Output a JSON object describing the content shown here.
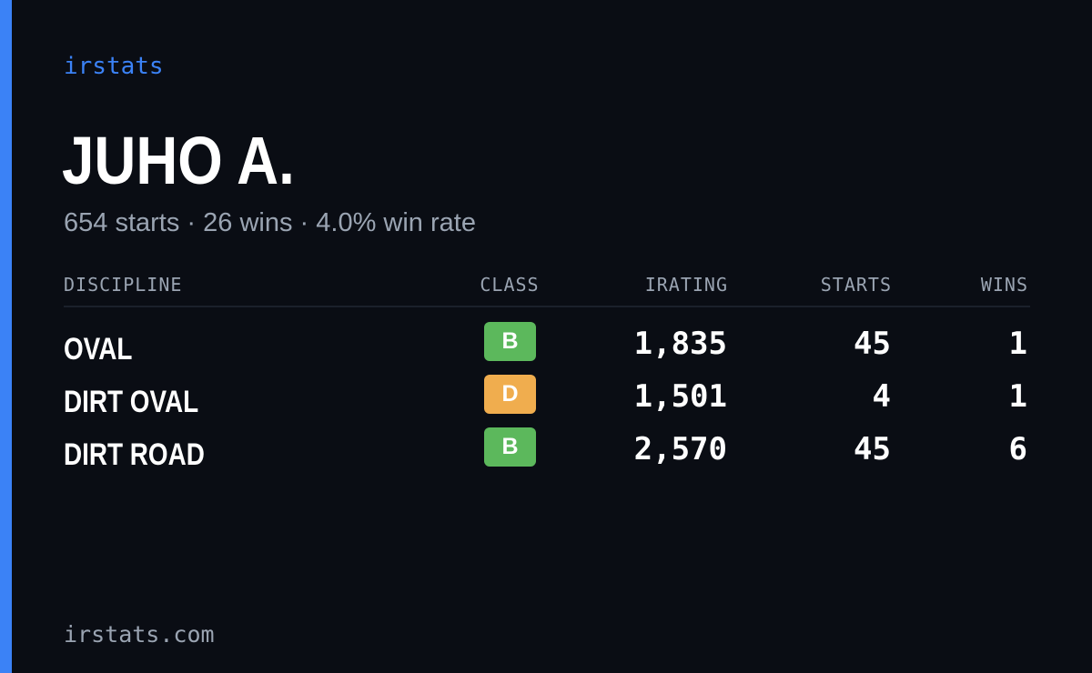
{
  "colors": {
    "accent": "#3b82f6",
    "background": "#0a0d14",
    "muted_text": "#9aa4b2",
    "class_b": "#5cb85c",
    "class_d": "#f0ad4e"
  },
  "brand": {
    "name": "irstats"
  },
  "driver": {
    "name": "JUHO A.",
    "starts_text": "654 starts",
    "wins_text": "26 wins",
    "win_rate_text": "4.0% win rate",
    "separator": "·"
  },
  "table": {
    "headers": {
      "discipline": "DISCIPLINE",
      "class": "CLASS",
      "irating": "IRATING",
      "starts": "STARTS",
      "wins": "WINS"
    },
    "rows": [
      {
        "discipline": "OVAL",
        "class": "B",
        "class_color": "#5cb85c",
        "irating": "1,835",
        "starts": "45",
        "wins": "1"
      },
      {
        "discipline": "DIRT OVAL",
        "class": "D",
        "class_color": "#f0ad4e",
        "irating": "1,501",
        "starts": "4",
        "wins": "1"
      },
      {
        "discipline": "DIRT ROAD",
        "class": "B",
        "class_color": "#5cb85c",
        "irating": "2,570",
        "starts": "45",
        "wins": "6"
      }
    ]
  },
  "footer": {
    "site": "irstats.com"
  }
}
